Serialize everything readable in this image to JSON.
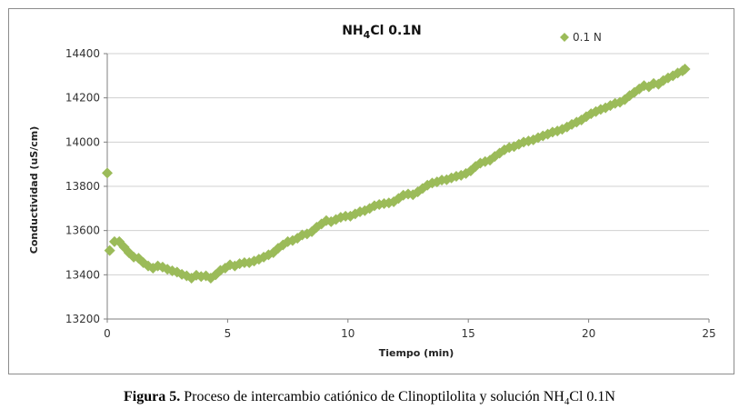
{
  "chart_data": {
    "type": "scatter",
    "title": "NH4Cl 0.1N",
    "title_parts": {
      "prefix": "NH",
      "sub": "4",
      "suffix": "Cl 0.1N"
    },
    "xlabel": "Tiempo (min)",
    "ylabel": "Conductividad (uS/cm)",
    "xlim": [
      0,
      25
    ],
    "ylim": [
      13200,
      14400
    ],
    "xticks": [
      0,
      5,
      10,
      15,
      20,
      25
    ],
    "yticks": [
      13200,
      13400,
      13600,
      13800,
      14000,
      14200,
      14400
    ],
    "grid": "horizontal",
    "legend": "top-right",
    "marker_color": "#9bbb59",
    "series": [
      {
        "name": "0.1 N",
        "x": [
          0.0,
          0.1,
          0.3,
          0.5,
          0.7,
          0.9,
          1.1,
          1.3,
          1.5,
          1.7,
          1.9,
          2.1,
          2.3,
          2.5,
          2.7,
          2.9,
          3.1,
          3.3,
          3.5,
          3.7,
          3.9,
          4.1,
          4.3,
          4.5,
          4.7,
          4.9,
          5.1,
          5.3,
          5.5,
          5.7,
          5.9,
          6.1,
          6.3,
          6.5,
          6.7,
          6.9,
          7.1,
          7.3,
          7.5,
          7.7,
          7.9,
          8.1,
          8.3,
          8.5,
          8.7,
          8.9,
          9.1,
          9.3,
          9.5,
          9.7,
          9.9,
          10.1,
          10.3,
          10.5,
          10.7,
          10.9,
          11.1,
          11.3,
          11.5,
          11.7,
          11.9,
          12.1,
          12.3,
          12.5,
          12.7,
          12.9,
          13.1,
          13.3,
          13.5,
          13.7,
          13.9,
          14.1,
          14.3,
          14.5,
          14.7,
          14.9,
          15.1,
          15.3,
          15.5,
          15.7,
          15.9,
          16.1,
          16.3,
          16.5,
          16.7,
          16.9,
          17.1,
          17.3,
          17.5,
          17.7,
          17.9,
          18.1,
          18.3,
          18.5,
          18.7,
          18.9,
          19.1,
          19.3,
          19.5,
          19.7,
          19.9,
          20.1,
          20.3,
          20.5,
          20.7,
          20.9,
          21.1,
          21.3,
          21.5,
          21.7,
          21.9,
          22.1,
          22.3,
          22.5,
          22.7,
          22.9,
          23.1,
          23.3,
          23.5,
          23.7,
          23.9,
          24.0
        ],
        "y": [
          13860,
          13510,
          13550,
          13550,
          13525,
          13500,
          13480,
          13475,
          13455,
          13440,
          13430,
          13440,
          13435,
          13425,
          13418,
          13412,
          13402,
          13395,
          13385,
          13398,
          13392,
          13395,
          13385,
          13400,
          13420,
          13430,
          13445,
          13440,
          13450,
          13455,
          13455,
          13462,
          13470,
          13480,
          13490,
          13500,
          13520,
          13535,
          13550,
          13555,
          13565,
          13580,
          13585,
          13595,
          13615,
          13630,
          13645,
          13640,
          13650,
          13660,
          13665,
          13665,
          13675,
          13685,
          13690,
          13700,
          13712,
          13718,
          13722,
          13725,
          13730,
          13745,
          13760,
          13765,
          13762,
          13775,
          13790,
          13805,
          13815,
          13820,
          13828,
          13830,
          13838,
          13845,
          13850,
          13858,
          13870,
          13890,
          13905,
          13912,
          13918,
          13935,
          13950,
          13965,
          13975,
          13980,
          13990,
          14000,
          14005,
          14010,
          14020,
          14028,
          14036,
          14045,
          14050,
          14058,
          14068,
          14080,
          14090,
          14100,
          14115,
          14128,
          14138,
          14148,
          14155,
          14165,
          14175,
          14180,
          14192,
          14210,
          14225,
          14240,
          14255,
          14250,
          14265,
          14262,
          14278,
          14290,
          14300,
          14312,
          14322,
          14330
        ]
      }
    ]
  },
  "caption": {
    "label": "Figura 5.",
    "text_before": " Proceso de intercambio catiónico de Clinoptilolita y solución NH",
    "sub": "4",
    "text_after": "Cl 0.1N"
  }
}
